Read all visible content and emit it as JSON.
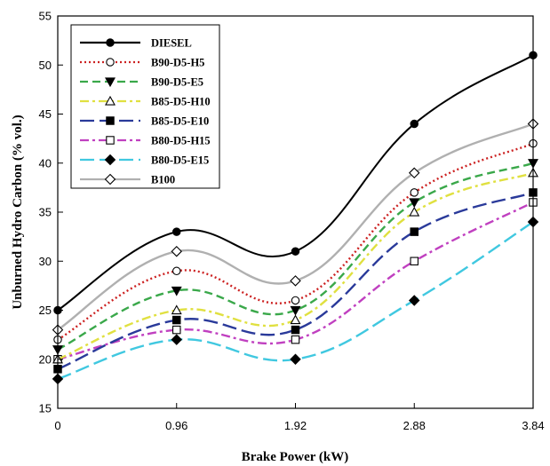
{
  "chart_data": {
    "type": "line",
    "x": [
      0,
      0.96,
      1.92,
      2.88,
      3.84
    ],
    "xticks": [
      "0",
      "0.96",
      "1.92",
      "2.88",
      "3.84"
    ],
    "xlabel": "Brake Power (kW)",
    "ylabel": "Unburned Hydro Carbon (% vol.)",
    "ylim": [
      15,
      55
    ],
    "yticks": [
      15,
      20,
      25,
      30,
      35,
      40,
      45,
      50,
      55
    ],
    "grid": false,
    "legend_position": "top-left",
    "series": [
      {
        "name": "DIESEL",
        "values": [
          25,
          33,
          31,
          44,
          51
        ],
        "color": "#000000",
        "dash": "solid",
        "marker": "circle-filled"
      },
      {
        "name": "B90-D5-H5",
        "values": [
          22,
          29,
          26,
          37,
          42
        ],
        "color": "#cc2222",
        "dash": "dot",
        "marker": "circle-open"
      },
      {
        "name": "B90-D5-E5",
        "values": [
          21,
          27,
          25,
          36,
          40
        ],
        "color": "#3aa84a",
        "dash": "dash",
        "marker": "triangle-down-filled"
      },
      {
        "name": "B85-D5-H10",
        "values": [
          20,
          25,
          24,
          35,
          39
        ],
        "color": "#e0e040",
        "dash": "dashdot",
        "marker": "triangle-up-open"
      },
      {
        "name": "B85-D5-E10",
        "values": [
          19,
          24,
          23,
          33,
          37
        ],
        "color": "#2a3a9a",
        "dash": "longdash",
        "marker": "square-filled"
      },
      {
        "name": "B80-D5-H15",
        "values": [
          20,
          23,
          22,
          30,
          36
        ],
        "color": "#c040c0",
        "dash": "dashdot",
        "marker": "square-open"
      },
      {
        "name": "B80-D5-E15",
        "values": [
          18,
          22,
          20,
          26,
          34
        ],
        "color": "#40c8e0",
        "dash": "longdash",
        "marker": "diamond-filled"
      },
      {
        "name": "B100",
        "values": [
          23,
          31,
          28,
          39,
          44
        ],
        "color": "#b0b0b0",
        "dash": "solid",
        "marker": "diamond-open"
      }
    ]
  }
}
